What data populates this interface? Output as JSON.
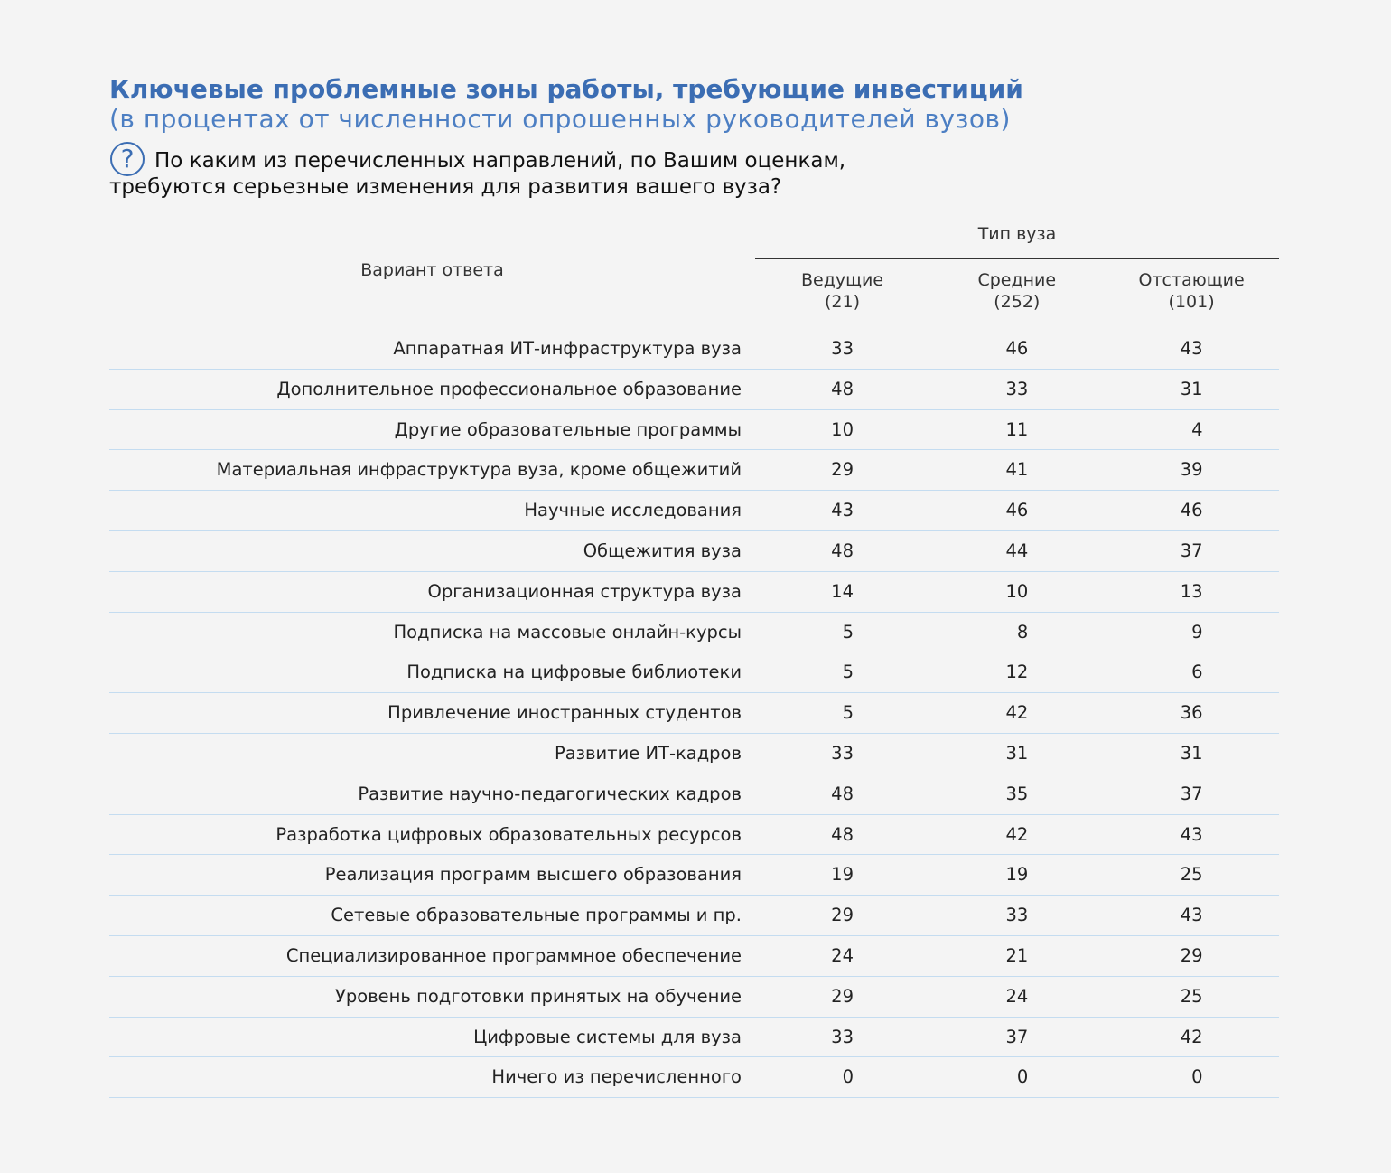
{
  "title": "Ключевые проблемные зоны работы, требующие инвестиций",
  "subtitle": "(в процентах от численности опрошенных руководителей вузов)",
  "question": {
    "icon": "?",
    "lines": [
      "По каким из перечисленных направлений, по Вашим оценкам,",
      "требуются серьезные изменения для развития вашего вуза?"
    ]
  },
  "table": {
    "row_header": "Вариант ответа",
    "group_header": "Тип вуза",
    "columns": [
      {
        "name": "Ведущие",
        "n": "(21)"
      },
      {
        "name": "Средние",
        "n": "(252)"
      },
      {
        "name": "Отстающие",
        "n": "(101)"
      }
    ],
    "rows": [
      [
        "Аппаратная ИТ-инфраструктура вуза",
        33,
        46,
        43
      ],
      [
        "Дополнительное профессиональное образование",
        48,
        33,
        31
      ],
      [
        "Другие образовательные программы",
        10,
        11,
        4
      ],
      [
        "Материальная инфраструктура вуза, кроме общежитий",
        29,
        41,
        39
      ],
      [
        "Научные исследования",
        43,
        46,
        46
      ],
      [
        "Общежития вуза",
        48,
        44,
        37
      ],
      [
        "Организационная структура вуза",
        14,
        10,
        13
      ],
      [
        "Подписка на массовые онлайн-курсы",
        5,
        8,
        9
      ],
      [
        "Подписка на цифровые библиотеки",
        5,
        12,
        6
      ],
      [
        "Привлечение иностранных студентов",
        5,
        42,
        36
      ],
      [
        "Развитие ИТ-кадров",
        33,
        31,
        31
      ],
      [
        "Развитие научно-педагогических кадров",
        48,
        35,
        37
      ],
      [
        "Разработка цифровых образовательных ресурсов",
        48,
        42,
        43
      ],
      [
        "Реализация программ высшего образования",
        19,
        19,
        25
      ],
      [
        "Сетевые образовательные программы и пр.",
        29,
        33,
        43
      ],
      [
        "Специализированное программное обеспечение",
        24,
        21,
        29
      ],
      [
        "Уровень подготовки принятых на обучение",
        29,
        24,
        25
      ],
      [
        "Цифровые системы для вуза",
        33,
        37,
        42
      ],
      [
        "Ничего из перечисленного",
        0,
        0,
        0
      ]
    ]
  }
}
